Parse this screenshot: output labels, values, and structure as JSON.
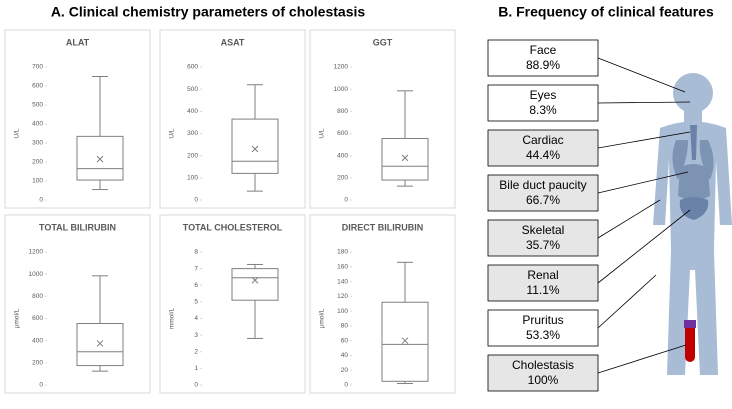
{
  "panel_a_title": "A. Clinical chemistry parameters of cholestasis",
  "panel_b_title": "B. Frequency of clinical features",
  "chart_data": [
    {
      "type": "box",
      "title": "ALAT",
      "y_label": "U/L",
      "ylim": [
        0,
        700
      ],
      "yticks": [
        0,
        100,
        200,
        300,
        400,
        500,
        600,
        700
      ],
      "min": 55,
      "q1": 105,
      "median": 165,
      "q3": 335,
      "max": 650,
      "mean": 215,
      "color": "#7f7f7f"
    },
    {
      "type": "box",
      "title": "ASAT",
      "y_label": "U/L",
      "ylim": [
        0,
        600
      ],
      "yticks": [
        0,
        100,
        200,
        300,
        400,
        500,
        600
      ],
      "min": 40,
      "q1": 120,
      "median": 175,
      "q3": 365,
      "max": 520,
      "mean": 230,
      "color": "#7f7f7f"
    },
    {
      "type": "box",
      "title": "GGT",
      "y_label": "U/L",
      "ylim": [
        0,
        1200
      ],
      "yticks": [
        0,
        200,
        400,
        600,
        800,
        1000,
        1200
      ],
      "min": 125,
      "q1": 180,
      "median": 305,
      "q3": 555,
      "max": 985,
      "mean": 380,
      "color": "#7f7f7f"
    },
    {
      "type": "box",
      "title": "TOTAL BILIRUBIN",
      "y_label": "µmol/L",
      "ylim": [
        0,
        1200
      ],
      "yticks": [
        0,
        200,
        400,
        600,
        800,
        1000,
        1200
      ],
      "min": 125,
      "q1": 175,
      "median": 300,
      "q3": 555,
      "max": 985,
      "mean": 375,
      "color": "#7f7f7f"
    },
    {
      "type": "box",
      "title": "TOTAL CHOLESTEROL",
      "y_label": "mmol/L",
      "ylim": [
        0,
        8
      ],
      "yticks": [
        0,
        1,
        2,
        3,
        4,
        5,
        6,
        7,
        8
      ],
      "min": 2.8,
      "q1": 5.1,
      "median": 6.45,
      "q3": 7.0,
      "max": 7.25,
      "mean": 6.3,
      "color": "#7f7f7f"
    },
    {
      "type": "box",
      "title": "DIRECT BILIRUBIN",
      "y_label": "µmol/L",
      "ylim": [
        0,
        180
      ],
      "yticks": [
        0,
        20,
        40,
        60,
        80,
        100,
        120,
        140,
        160,
        180
      ],
      "min": 2,
      "q1": 5,
      "median": 55,
      "q3": 112,
      "max": 166,
      "mean": 60,
      "color": "#7f7f7f"
    }
  ],
  "features": [
    {
      "label": "Face",
      "value": "88.9%",
      "fill": "#ffffff"
    },
    {
      "label": "Eyes",
      "value": "8.3%",
      "fill": "#ffffff"
    },
    {
      "label": "Cardiac",
      "value": "44.4%",
      "fill": "#e7e6e6"
    },
    {
      "label": "Bile duct paucity",
      "value": "66.7%",
      "fill": "#e7e6e6"
    },
    {
      "label": "Skeletal",
      "value": "35.7%",
      "fill": "#e7e6e6"
    },
    {
      "label": "Renal",
      "value": "11.1%",
      "fill": "#e7e6e6"
    },
    {
      "label": "Pruritus",
      "value": "53.3%",
      "fill": "#ffffff"
    },
    {
      "label": "Cholestasis",
      "value": "100%",
      "fill": "#e7e6e6"
    }
  ]
}
